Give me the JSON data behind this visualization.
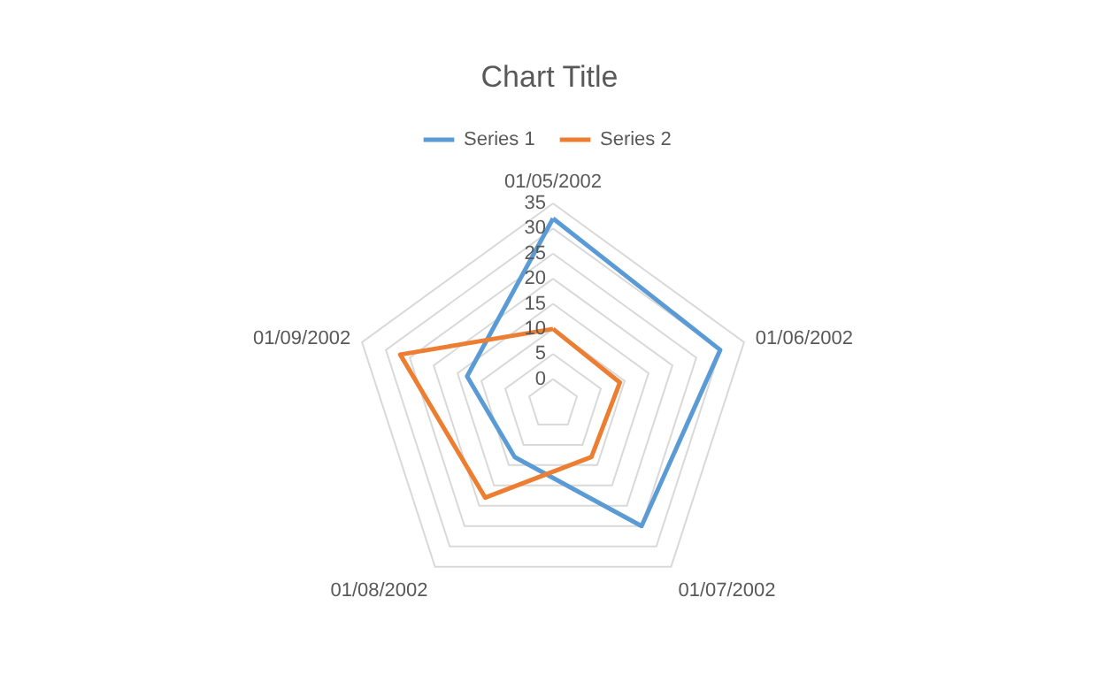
{
  "chart_data": {
    "type": "radar",
    "title": "Chart Title",
    "categories": [
      "01/05/2002",
      "01/06/2002",
      "01/07/2002",
      "01/08/2002",
      "01/09/2002"
    ],
    "series": [
      {
        "name": "Series 1",
        "color": "#5b9bd5",
        "values": [
          32,
          30,
          25,
          8,
          13
        ]
      },
      {
        "name": "Series 2",
        "color": "#ed7d31",
        "values": [
          10,
          9,
          8,
          18,
          27
        ]
      }
    ],
    "ylim": [
      -5,
      35
    ],
    "yticks": [
      0,
      5,
      10,
      15,
      20,
      25,
      30,
      35
    ],
    "grid": true,
    "legend": "top"
  }
}
